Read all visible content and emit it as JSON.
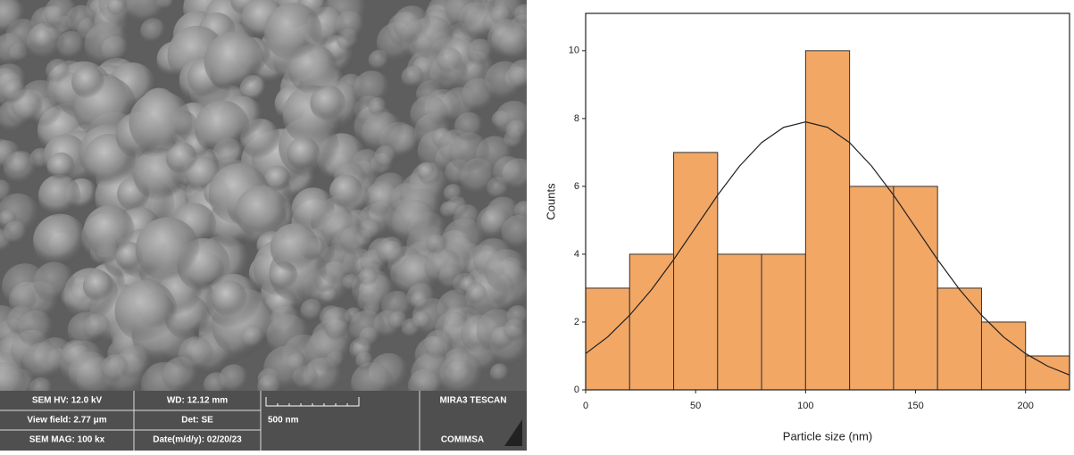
{
  "sem_info": {
    "hv": "SEM HV: 12.0 kV",
    "view_field": "View field: 2.77 μm",
    "mag": "SEM MAG: 100 kx",
    "wd": "WD: 12.12 mm",
    "det": "Det: SE",
    "date": "Date(m/d/y): 02/20/23",
    "scale": "500 nm",
    "brand": "MIRA3 TESCAN",
    "lab": "COMIMSA"
  },
  "chart_data": {
    "type": "histogram",
    "x_label": "Particle size (nm)",
    "y_label": "Counts",
    "bins": [
      0,
      20,
      40,
      60,
      80,
      100,
      120,
      140,
      160,
      180,
      200,
      220
    ],
    "counts": [
      3,
      4,
      7,
      4,
      4,
      10,
      6,
      6,
      3,
      2,
      1
    ],
    "color": "#f2a765",
    "fit": {
      "color": "#222222",
      "x": [
        0,
        10,
        20,
        30,
        40,
        50,
        60,
        70,
        80,
        90,
        100,
        110,
        120,
        130,
        140,
        150,
        160,
        170,
        180,
        190,
        200,
        210,
        220
      ],
      "values": [
        1.07,
        1.56,
        2.2,
        2.96,
        3.84,
        4.79,
        5.74,
        6.6,
        7.29,
        7.74,
        7.9,
        7.74,
        7.29,
        6.6,
        5.74,
        4.79,
        3.84,
        2.96,
        2.2,
        1.56,
        1.07,
        0.7,
        0.44
      ]
    },
    "xlim": [
      0,
      220
    ],
    "ylim": [
      0,
      11.1
    ],
    "xticks": [
      0,
      50,
      100,
      150,
      200
    ],
    "yticks": [
      0,
      2,
      4,
      6,
      8,
      10
    ]
  }
}
